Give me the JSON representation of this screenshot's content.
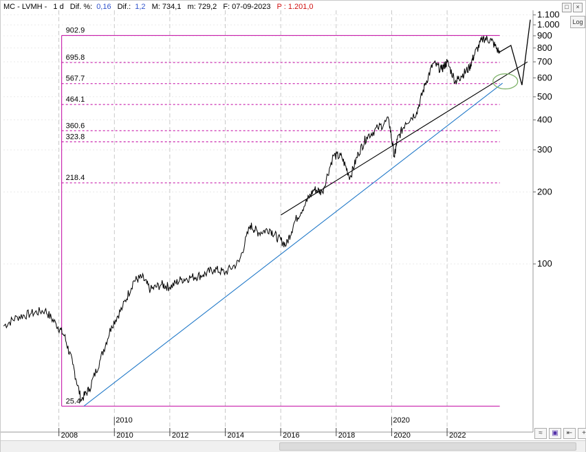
{
  "header": {
    "symbol": "MC - LVMH -",
    "interval": "1 d",
    "dif_pct_label": "Dif. %:",
    "dif_pct_value": "0,16",
    "dif_label": "Dif.:",
    "dif_value": "1,2",
    "max_text": "M: 734,1",
    "min_text": "m: 729,2",
    "date_text": "F: 07-09-2023",
    "price_text": "P : 1.201,0"
  },
  "toolbar": {
    "log_label": "Log"
  },
  "chart_data": {
    "type": "line",
    "title": "",
    "scale": "log",
    "ylim": [
      22,
      1150
    ],
    "xlim": [
      2006.0,
      2025.0
    ],
    "y_ticks": [
      1100,
      1000,
      900,
      800,
      700,
      600,
      500,
      400,
      300,
      200,
      100
    ],
    "y_tick_labels": [
      "1.100",
      "1.000",
      "900",
      "800",
      "700",
      "600",
      "500",
      "400",
      "300",
      "200",
      "100"
    ],
    "x_ticks": [
      2008,
      2010,
      2012,
      2014,
      2016,
      2018,
      2020,
      2022
    ],
    "x_tick_labels": [
      "2008",
      "2010",
      "2012",
      "2014",
      "2016",
      "2018",
      "2020",
      "2022"
    ],
    "x_upper_labels": [
      {
        "x": 2010,
        "label": "2010"
      },
      {
        "x": 2020,
        "label": "2020"
      }
    ],
    "fib_levels": [
      {
        "value": 902.9,
        "label": "902.9",
        "style": "solid"
      },
      {
        "value": 695.8,
        "label": "695.8",
        "style": "dashed"
      },
      {
        "value": 567.7,
        "label": "567.7",
        "style": "dashed"
      },
      {
        "value": 464.1,
        "label": "464.1",
        "style": "dashed"
      },
      {
        "value": 360.6,
        "label": "360.6",
        "style": "dashed"
      },
      {
        "value": 323.8,
        "label": "323.8",
        "style": "dashed"
      },
      {
        "value": 218.4,
        "label": "218.4",
        "style": "dashed"
      },
      {
        "value": 25.4,
        "label": "25.4",
        "style": "solid"
      }
    ],
    "fib_range": {
      "x_start": 2008.1,
      "x_end": 2023.9
    },
    "series": [
      {
        "color": "#000000",
        "x": [
          2006.0,
          2006.5,
          2007.0,
          2007.5,
          2007.9,
          2008.2,
          2008.5,
          2008.8,
          2009.1,
          2009.5,
          2009.9,
          2010.3,
          2010.7,
          2011.0,
          2011.3,
          2011.7,
          2012.0,
          2012.4,
          2012.8,
          2013.2,
          2013.6,
          2014.0,
          2014.5,
          2014.9,
          2015.2,
          2015.6,
          2015.9,
          2016.2,
          2016.5,
          2016.9,
          2017.2,
          2017.5,
          2017.9,
          2018.2,
          2018.5,
          2018.8,
          2019.1,
          2019.5,
          2019.9,
          2020.1,
          2020.2,
          2020.5,
          2020.9,
          2021.2,
          2021.5,
          2021.8,
          2022.0,
          2022.3,
          2022.5,
          2022.8,
          2023.0,
          2023.3,
          2023.6,
          2023.9
        ],
        "y": [
          55,
          60,
          62,
          64,
          56,
          50,
          38,
          27,
          30,
          40,
          55,
          66,
          85,
          88,
          78,
          82,
          80,
          86,
          88,
          90,
          95,
          92,
          102,
          145,
          135,
          140,
          128,
          120,
          150,
          180,
          205,
          200,
          285,
          280,
          230,
          290,
          340,
          370,
          400,
          280,
          330,
          390,
          430,
          560,
          690,
          650,
          700,
          580,
          610,
          660,
          760,
          880,
          860,
          760
        ]
      }
    ],
    "trendlines": [
      {
        "name": "",
        "color": "#1f78c8",
        "points": [
          [
            2008.9,
            25.4
          ],
          [
            2024.0,
            570
          ]
        ]
      },
      {
        "name": "",
        "color": "#000000",
        "points": [
          [
            2016.0,
            160
          ],
          [
            2024.9,
            700
          ]
        ]
      }
    ],
    "projection": {
      "color": "#000000",
      "points": [
        [
          2023.9,
          770
        ],
        [
          2024.3,
          820
        ],
        [
          2024.7,
          560
        ],
        [
          2025.0,
          1050
        ]
      ]
    },
    "highlight_ellipse": {
      "x": 2024.1,
      "y": 580,
      "color": "#7fb36a"
    },
    "grid": true,
    "colors": {
      "price": "#000000",
      "fib": "#c000a0",
      "trend": "#1f78c8",
      "grid": "#bbbbbb"
    }
  }
}
